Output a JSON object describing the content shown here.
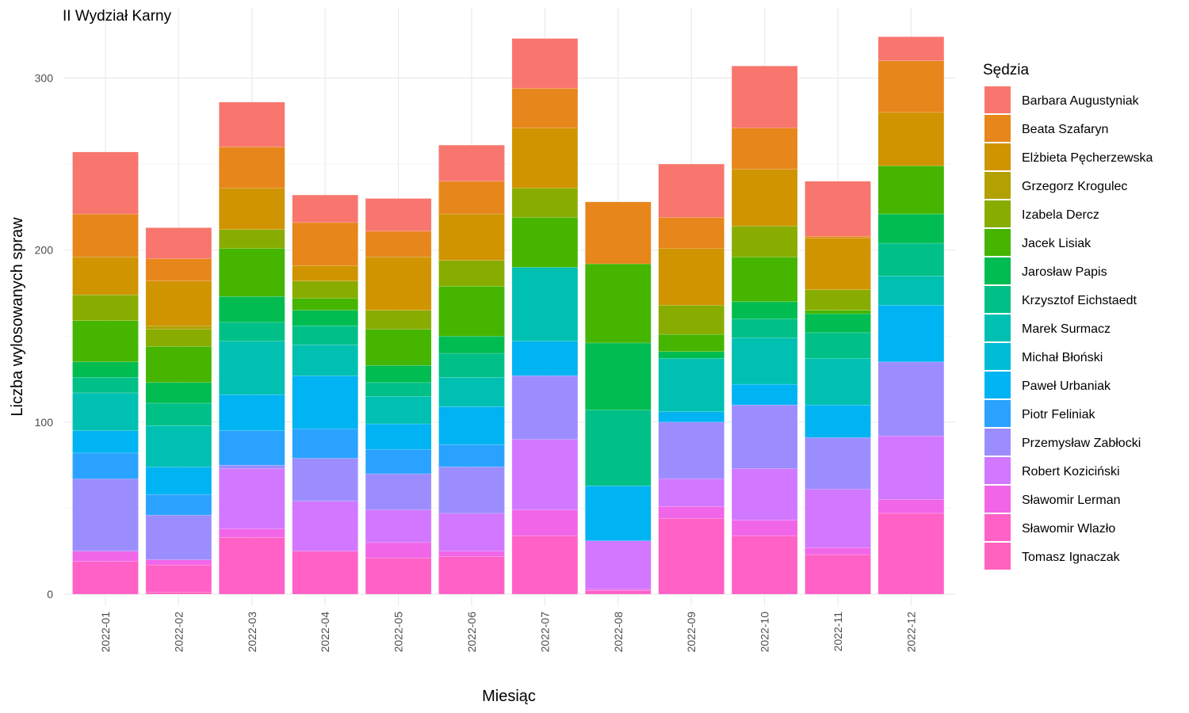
{
  "chart_data": {
    "type": "bar",
    "stacked": true,
    "title": "II Wydział Karny",
    "xlabel": "Miesiąc",
    "ylabel": "Liczba wylosowanych spraw",
    "ylim": [
      0,
      330
    ],
    "y_ticks": [
      "0",
      "100",
      "200",
      "300"
    ],
    "grid": true,
    "legend_title": "Sędzia",
    "legend_position": "right",
    "categories": [
      "2022-01",
      "2022-02",
      "2022-03",
      "2022-04",
      "2022-05",
      "2022-06",
      "2022-07",
      "2022-08",
      "2022-09",
      "2022-10",
      "2022-11",
      "2022-12"
    ],
    "series": [
      {
        "name": "Barbara Augustyniak",
        "color": "#F8766D",
        "values": [
          36,
          18,
          26,
          16,
          19,
          21,
          29,
          0,
          31,
          36,
          32,
          14
        ]
      },
      {
        "name": "Beata Szafaryn",
        "color": "#E7861B",
        "values": [
          25,
          13,
          24,
          25,
          15,
          19,
          23,
          36,
          18,
          24,
          1,
          30
        ]
      },
      {
        "name": "Elżbieta Pęcherzewska",
        "color": "#D09400",
        "values": [
          22,
          26,
          24,
          9,
          31,
          27,
          35,
          0,
          33,
          33,
          30,
          31
        ]
      },
      {
        "name": "Grzegorz Krogulec",
        "color": "#B2A100",
        "values": [
          0,
          2,
          0,
          0,
          0,
          0,
          0,
          0,
          0,
          0,
          0,
          0
        ]
      },
      {
        "name": "Izabela Dercz",
        "color": "#89AC00",
        "values": [
          15,
          10,
          11,
          10,
          11,
          15,
          17,
          0,
          17,
          18,
          12,
          0
        ]
      },
      {
        "name": "Jacek Lisiak",
        "color": "#45B500",
        "values": [
          24,
          21,
          28,
          7,
          21,
          29,
          29,
          46,
          10,
          26,
          2,
          28
        ]
      },
      {
        "name": "Jarosław Papis",
        "color": "#00BC51",
        "values": [
          9,
          12,
          15,
          9,
          10,
          10,
          0,
          39,
          4,
          10,
          11,
          17
        ]
      },
      {
        "name": "Krzysztof Eichstaedt",
        "color": "#00C087",
        "values": [
          9,
          13,
          11,
          11,
          8,
          14,
          0,
          44,
          0,
          11,
          15,
          19
        ]
      },
      {
        "name": "Marek Surmacz",
        "color": "#00C0B2",
        "values": [
          22,
          24,
          31,
          18,
          16,
          17,
          43,
          0,
          31,
          27,
          27,
          17
        ]
      },
      {
        "name": "Michał Błoński",
        "color": "#00BCD6",
        "values": [
          0,
          0,
          0,
          0,
          0,
          0,
          0,
          0,
          0,
          0,
          0,
          0
        ]
      },
      {
        "name": "Paweł Urbaniak",
        "color": "#00B3F2",
        "values": [
          13,
          16,
          21,
          31,
          15,
          22,
          20,
          32,
          6,
          12,
          19,
          33
        ]
      },
      {
        "name": "Piotr Feliniak",
        "color": "#29A3FF",
        "values": [
          15,
          12,
          20,
          17,
          14,
          13,
          0,
          0,
          0,
          0,
          0,
          0
        ]
      },
      {
        "name": "Przemysław Zabłocki",
        "color": "#9C8DFF",
        "values": [
          42,
          26,
          2,
          25,
          21,
          27,
          37,
          0,
          33,
          37,
          30,
          43
        ]
      },
      {
        "name": "Robert Koziciński",
        "color": "#D277FF",
        "values": [
          0,
          0,
          35,
          29,
          19,
          22,
          41,
          28,
          16,
          30,
          34,
          37
        ]
      },
      {
        "name": "Sławomir Lerman",
        "color": "#F166E8",
        "values": [
          6,
          3,
          5,
          0,
          9,
          3,
          15,
          1,
          7,
          9,
          4,
          8
        ]
      },
      {
        "name": "Sławomir Wlazło",
        "color": "#FF61C7",
        "values": [
          19,
          16,
          33,
          25,
          21,
          22,
          34,
          2,
          44,
          34,
          23,
          47
        ]
      },
      {
        "name": "Tomasz Ignaczak",
        "color": "#FF62BC",
        "values": [
          0,
          1,
          0,
          0,
          0,
          0,
          0,
          0,
          0,
          0,
          0,
          0
        ]
      }
    ]
  }
}
